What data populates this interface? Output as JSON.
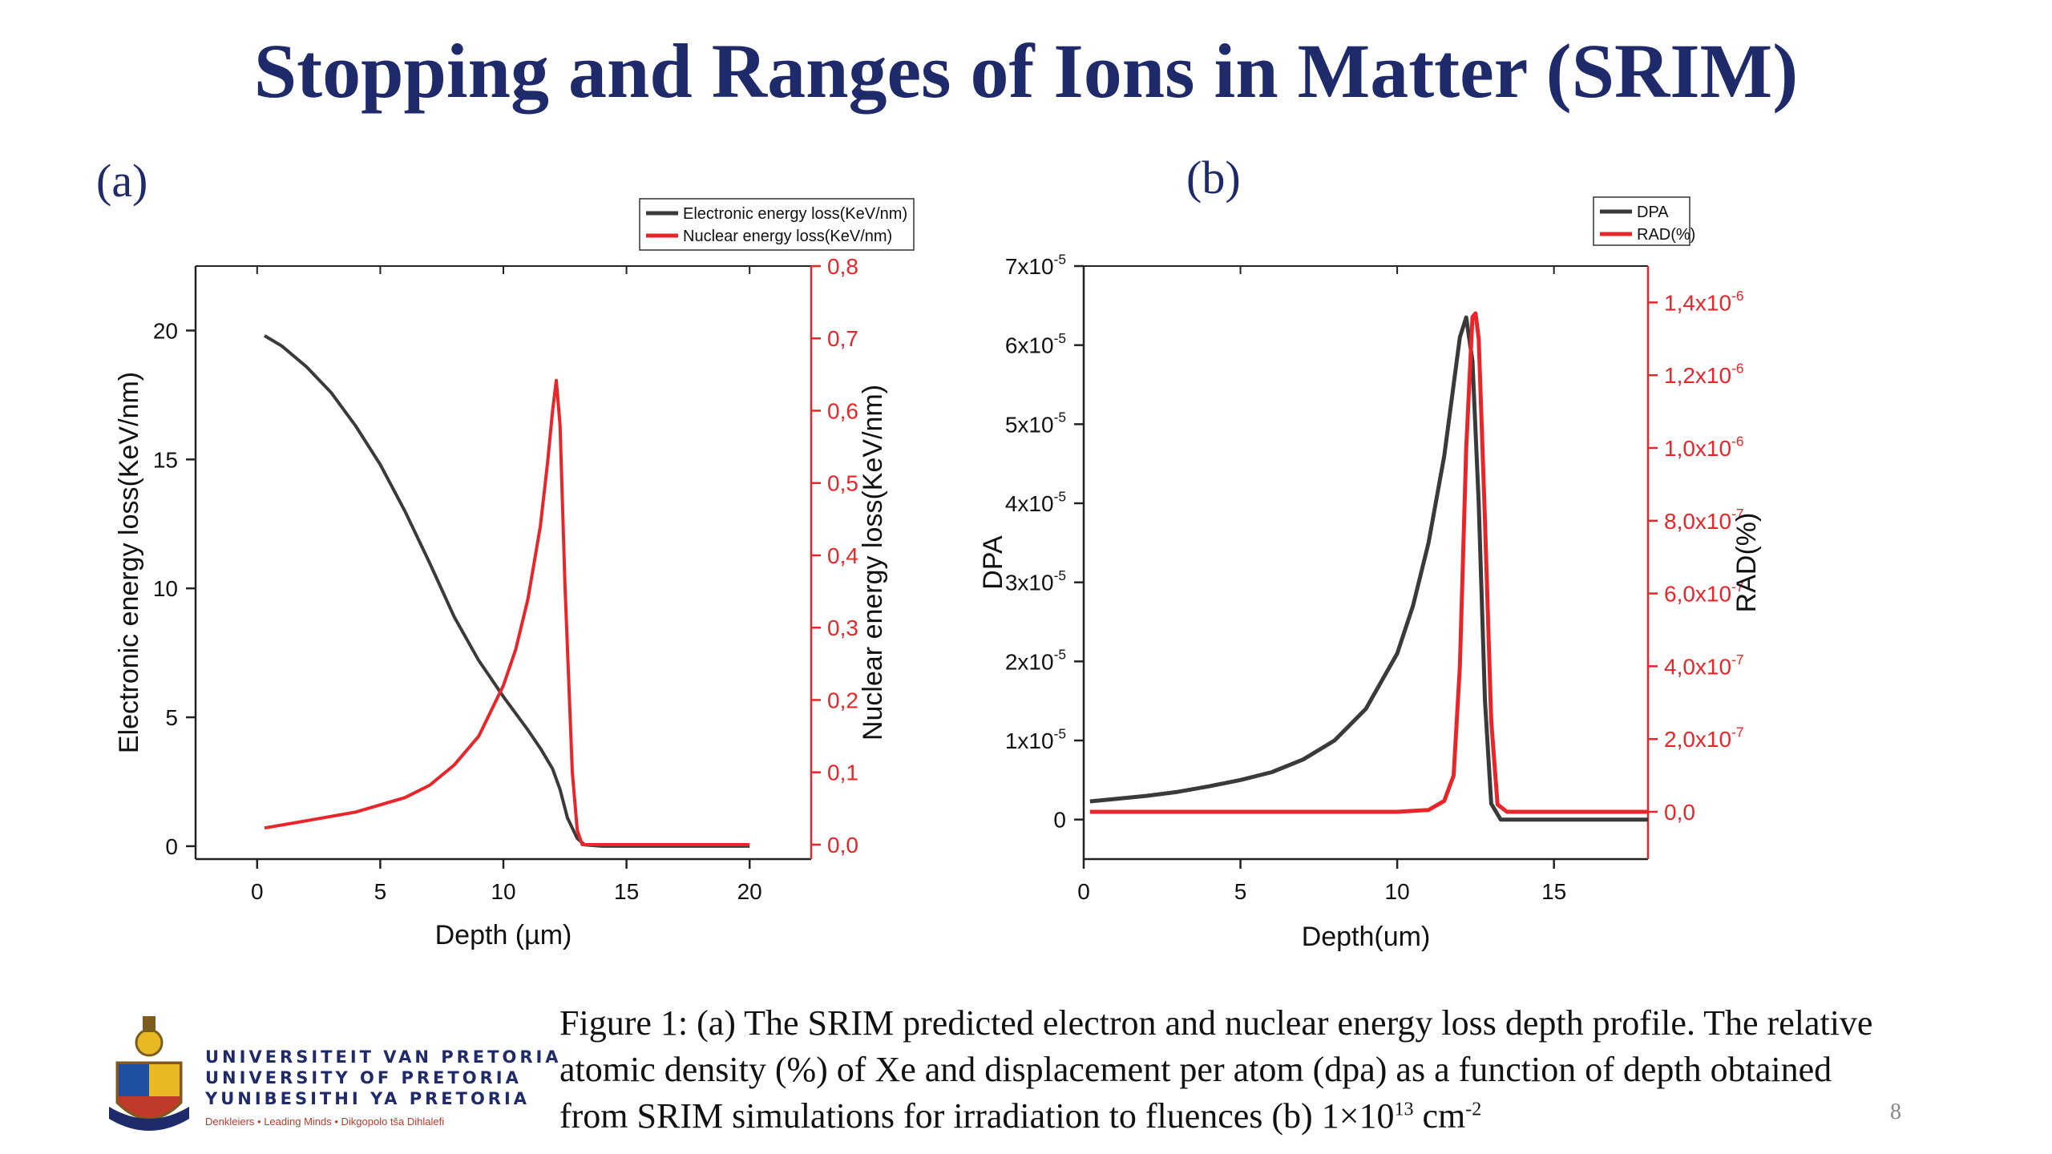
{
  "slide": {
    "title": "Stopping and Ranges of Ions in Matter (SRIM)",
    "page_number": "8",
    "caption_line1": "Figure 1: (a) The SRIM predicted electron and nuclear energy loss depth profile. The relative",
    "caption_line2": "atomic density (%) of Xe and displacement per atom (dpa) as a function of depth obtained",
    "caption_line3_a": "from SRIM simulations for irradiation to fluences (b) 1×10",
    "caption_line3_sup1": "13",
    "caption_line3_b": " cm",
    "caption_line3_sup2": "-2"
  },
  "logo": {
    "line1": "UNIVERSITEIT VAN PRETORIA",
    "line2": "UNIVERSITY OF PRETORIA",
    "line3": "YUNIBESITHI YA PRETORIA",
    "motto": "Denkleiers • Leading Minds • Dikgopolo tša Dihlalefi"
  },
  "colors": {
    "dark_series": "#3a3a3a",
    "red_series": "#e8262a",
    "title": "#1f2a6b"
  },
  "chart_data": [
    {
      "type": "line",
      "panel_label": "(a)",
      "xlabel": "Depth (µm)",
      "ylabel": "Electronic energy loss(KeV/nm)",
      "y2label": "Nuclear energy loss(KeV/nm)",
      "xlim": [
        -2.5,
        22.5
      ],
      "ylim": [
        -0.5,
        22.5
      ],
      "y2lim": [
        -0.02,
        0.8
      ],
      "xticks": [
        "0",
        "5",
        "10",
        "15",
        "20"
      ],
      "yticks": [
        "0",
        "5",
        "10",
        "15",
        "20"
      ],
      "y2ticks": [
        "0,0",
        "0,1",
        "0,2",
        "0,3",
        "0,4",
        "0,5",
        "0,6",
        "0,7",
        "0,8"
      ],
      "legend_position": "top-right",
      "series": [
        {
          "name": "Electronic energy loss(KeV/nm)",
          "axis": "left",
          "x": [
            0.3,
            1,
            2,
            3,
            4,
            5,
            6,
            7,
            8,
            9,
            10,
            11,
            11.5,
            12,
            12.3,
            12.6,
            13,
            13.3,
            14,
            16,
            18,
            20
          ],
          "y": [
            19.8,
            19.4,
            18.6,
            17.6,
            16.3,
            14.8,
            13.0,
            11.0,
            8.9,
            7.2,
            5.8,
            4.5,
            3.8,
            3.0,
            2.2,
            1.1,
            0.3,
            0.05,
            0.0,
            0.0,
            0.0,
            0.0
          ]
        },
        {
          "name": "Nuclear energy loss(KeV/nm)",
          "axis": "right",
          "x": [
            0.3,
            2,
            4,
            6,
            7,
            8,
            9,
            10,
            10.5,
            11,
            11.5,
            11.8,
            12.0,
            12.15,
            12.3,
            12.5,
            12.8,
            13.0,
            13.2,
            14,
            16,
            18,
            20
          ],
          "y": [
            0.023,
            0.033,
            0.045,
            0.065,
            0.082,
            0.11,
            0.15,
            0.22,
            0.27,
            0.34,
            0.44,
            0.53,
            0.6,
            0.642,
            0.58,
            0.36,
            0.1,
            0.02,
            0.0,
            0.0,
            0.0,
            0.0,
            0.0
          ]
        }
      ]
    },
    {
      "type": "line",
      "panel_label": "(b)",
      "xlabel": "Depth(um)",
      "ylabel": "DPA",
      "y2label": "RAD(%)",
      "xlim": [
        0,
        18
      ],
      "ylim": [
        -5e-06,
        7e-05
      ],
      "y2lim": [
        -1.3e-07,
        1.5e-06
      ],
      "xticks": [
        "0",
        "5",
        "10",
        "15"
      ],
      "yticks": [
        {
          "base": "0",
          "exp": ""
        },
        {
          "base": "1x10",
          "exp": "-5"
        },
        {
          "base": "2x10",
          "exp": "-5"
        },
        {
          "base": "3x10",
          "exp": "-5"
        },
        {
          "base": "4x10",
          "exp": "-5"
        },
        {
          "base": "5x10",
          "exp": "-5"
        },
        {
          "base": "6x10",
          "exp": "-5"
        },
        {
          "base": "7x10",
          "exp": "-5"
        }
      ],
      "y2ticks": [
        {
          "base": "0,0",
          "exp": ""
        },
        {
          "base": "2,0x10",
          "exp": "-7"
        },
        {
          "base": "4,0x10",
          "exp": "-7"
        },
        {
          "base": "6,0x10",
          "exp": "-7"
        },
        {
          "base": "8,0x10",
          "exp": "-7"
        },
        {
          "base": "1,0x10",
          "exp": "-6"
        },
        {
          "base": "1,2x10",
          "exp": "-6"
        },
        {
          "base": "1,4x10",
          "exp": "-6"
        }
      ],
      "legend_position": "top-right",
      "series": [
        {
          "name": "DPA",
          "axis": "left",
          "x": [
            0.2,
            1,
            2,
            3,
            4,
            5,
            6,
            7,
            8,
            9,
            10,
            10.5,
            11,
            11.5,
            11.8,
            12.0,
            12.2,
            12.4,
            12.6,
            12.8,
            13.0,
            13.3,
            14,
            16,
            18
          ],
          "y": [
            2.3e-06,
            2.6e-06,
            3e-06,
            3.5e-06,
            4.2e-06,
            5e-06,
            6e-06,
            7.6e-06,
            1e-05,
            1.4e-05,
            2.1e-05,
            2.7e-05,
            3.5e-05,
            4.6e-05,
            5.5e-05,
            6.1e-05,
            6.35e-05,
            5.8e-05,
            4e-05,
            1.5e-05,
            2e-06,
            0.0,
            0.0,
            0.0,
            0.0
          ]
        },
        {
          "name": "RAD(%)",
          "axis": "right",
          "x": [
            0.2,
            5,
            10,
            11,
            11.5,
            11.8,
            12.0,
            12.2,
            12.4,
            12.5,
            12.6,
            12.8,
            13.0,
            13.2,
            13.5,
            14,
            16,
            18
          ],
          "y": [
            0.0,
            0.0,
            0.0,
            5e-09,
            3e-08,
            1e-07,
            4e-07,
            1e-06,
            1.36e-06,
            1.37e-06,
            1.3e-06,
            8e-07,
            2.5e-07,
            2e-08,
            0.0,
            0.0,
            0.0,
            0.0
          ]
        }
      ]
    }
  ]
}
